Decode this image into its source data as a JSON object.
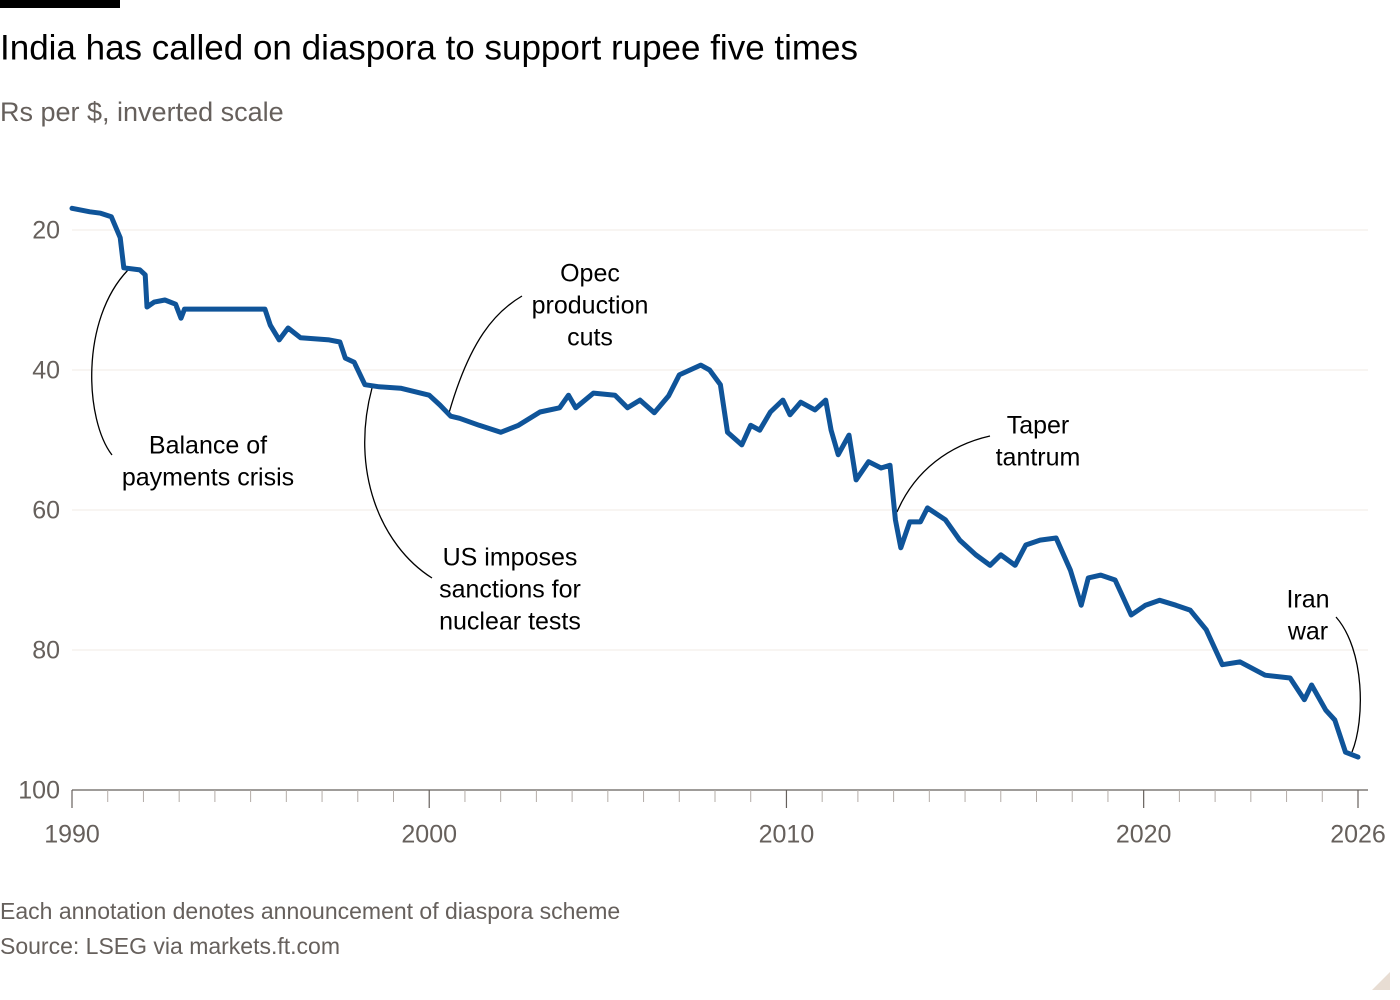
{
  "chart_data": {
    "type": "line",
    "title": "India has called on diaspora to support rupee five times",
    "subtitle": "Rs per $, inverted scale",
    "note": "Each annotation denotes announcement of diaspora scheme",
    "source": "Source: LSEG via markets.ft.com",
    "color": "#0f5499",
    "invert_y": true,
    "grid": true,
    "xlim": [
      1990,
      2026
    ],
    "xticks": [
      1990,
      2000,
      2010,
      2020,
      2026
    ],
    "x_minor_ticks": [
      1991,
      1992,
      1993,
      1994,
      1995,
      1996,
      1997,
      1998,
      1999,
      2001,
      2002,
      2003,
      2004,
      2005,
      2006,
      2007,
      2008,
      2009,
      2011,
      2012,
      2013,
      2014,
      2015,
      2016,
      2017,
      2018,
      2019,
      2021,
      2022,
      2023,
      2024,
      2025
    ],
    "ylim": [
      15,
      100
    ],
    "yticks": [
      20,
      40,
      60,
      80,
      100
    ],
    "x": [
      1990.0,
      1990.5,
      1990.8,
      1991.1,
      1991.35,
      1991.45,
      1991.9,
      1992.05,
      1992.1,
      1992.3,
      1992.6,
      1992.9,
      1993.05,
      1993.15,
      1995.4,
      1995.55,
      1995.8,
      1996.05,
      1996.4,
      1997.2,
      1997.5,
      1997.65,
      1997.9,
      1998.2,
      1998.6,
      1999.2,
      2000.0,
      2000.3,
      2000.6,
      2000.85,
      2001.4,
      2002.0,
      2002.5,
      2003.1,
      2003.65,
      2003.9,
      2004.1,
      2004.6,
      2005.2,
      2005.55,
      2005.9,
      2006.3,
      2006.7,
      2007.0,
      2007.3,
      2007.6,
      2007.85,
      2008.15,
      2008.35,
      2008.75,
      2009.0,
      2009.25,
      2009.55,
      2009.9,
      2010.1,
      2010.4,
      2010.8,
      2011.1,
      2011.25,
      2011.45,
      2011.75,
      2011.95,
      2012.3,
      2012.65,
      2012.9,
      2013.05,
      2013.2,
      2013.45,
      2013.75,
      2013.95,
      2014.45,
      2014.85,
      2015.3,
      2015.7,
      2016.0,
      2016.4,
      2016.7,
      2017.1,
      2017.55,
      2017.95,
      2018.25,
      2018.45,
      2018.8,
      2019.2,
      2019.65,
      2020.05,
      2020.45,
      2020.9,
      2021.3,
      2021.75,
      2022.2,
      2022.7,
      2023.4,
      2024.1,
      2024.5,
      2024.7,
      2025.1,
      2025.35,
      2025.65,
      2026.0
    ],
    "values": [
      16.9,
      17.4,
      17.6,
      18.1,
      21.1,
      25.4,
      25.7,
      26.4,
      31.0,
      30.3,
      30.0,
      30.6,
      32.6,
      31.3,
      31.3,
      33.6,
      35.7,
      34.0,
      35.4,
      35.7,
      36.0,
      38.3,
      38.9,
      42.1,
      42.4,
      42.6,
      43.6,
      45.0,
      46.6,
      46.9,
      47.9,
      48.9,
      47.9,
      46.0,
      45.4,
      43.6,
      45.4,
      43.3,
      43.6,
      45.4,
      44.3,
      46.1,
      43.7,
      40.7,
      40.0,
      39.3,
      40.0,
      42.1,
      48.9,
      50.7,
      47.9,
      48.6,
      46.0,
      44.3,
      46.4,
      44.6,
      45.7,
      44.3,
      48.6,
      52.1,
      49.3,
      55.7,
      53.1,
      54.0,
      53.6,
      61.4,
      65.4,
      61.7,
      61.7,
      59.7,
      61.4,
      64.3,
      66.4,
      67.9,
      66.4,
      67.9,
      65.0,
      64.3,
      64.0,
      68.6,
      73.6,
      69.7,
      69.3,
      70.0,
      75.0,
      73.6,
      72.9,
      73.6,
      74.3,
      77.1,
      82.1,
      81.7,
      83.6,
      84.0,
      87.1,
      85.0,
      88.6,
      90.0,
      94.6,
      95.3
    ],
    "annotations": [
      {
        "lines": [
          "Balance of",
          "payments crisis"
        ]
      },
      {
        "lines": [
          "Opec",
          "production",
          "cuts"
        ]
      },
      {
        "lines": [
          "US imposes",
          "sanctions for",
          "nuclear tests"
        ]
      },
      {
        "lines": [
          "Taper",
          "tantrum"
        ]
      },
      {
        "lines": [
          "Iran",
          "war"
        ]
      }
    ]
  }
}
